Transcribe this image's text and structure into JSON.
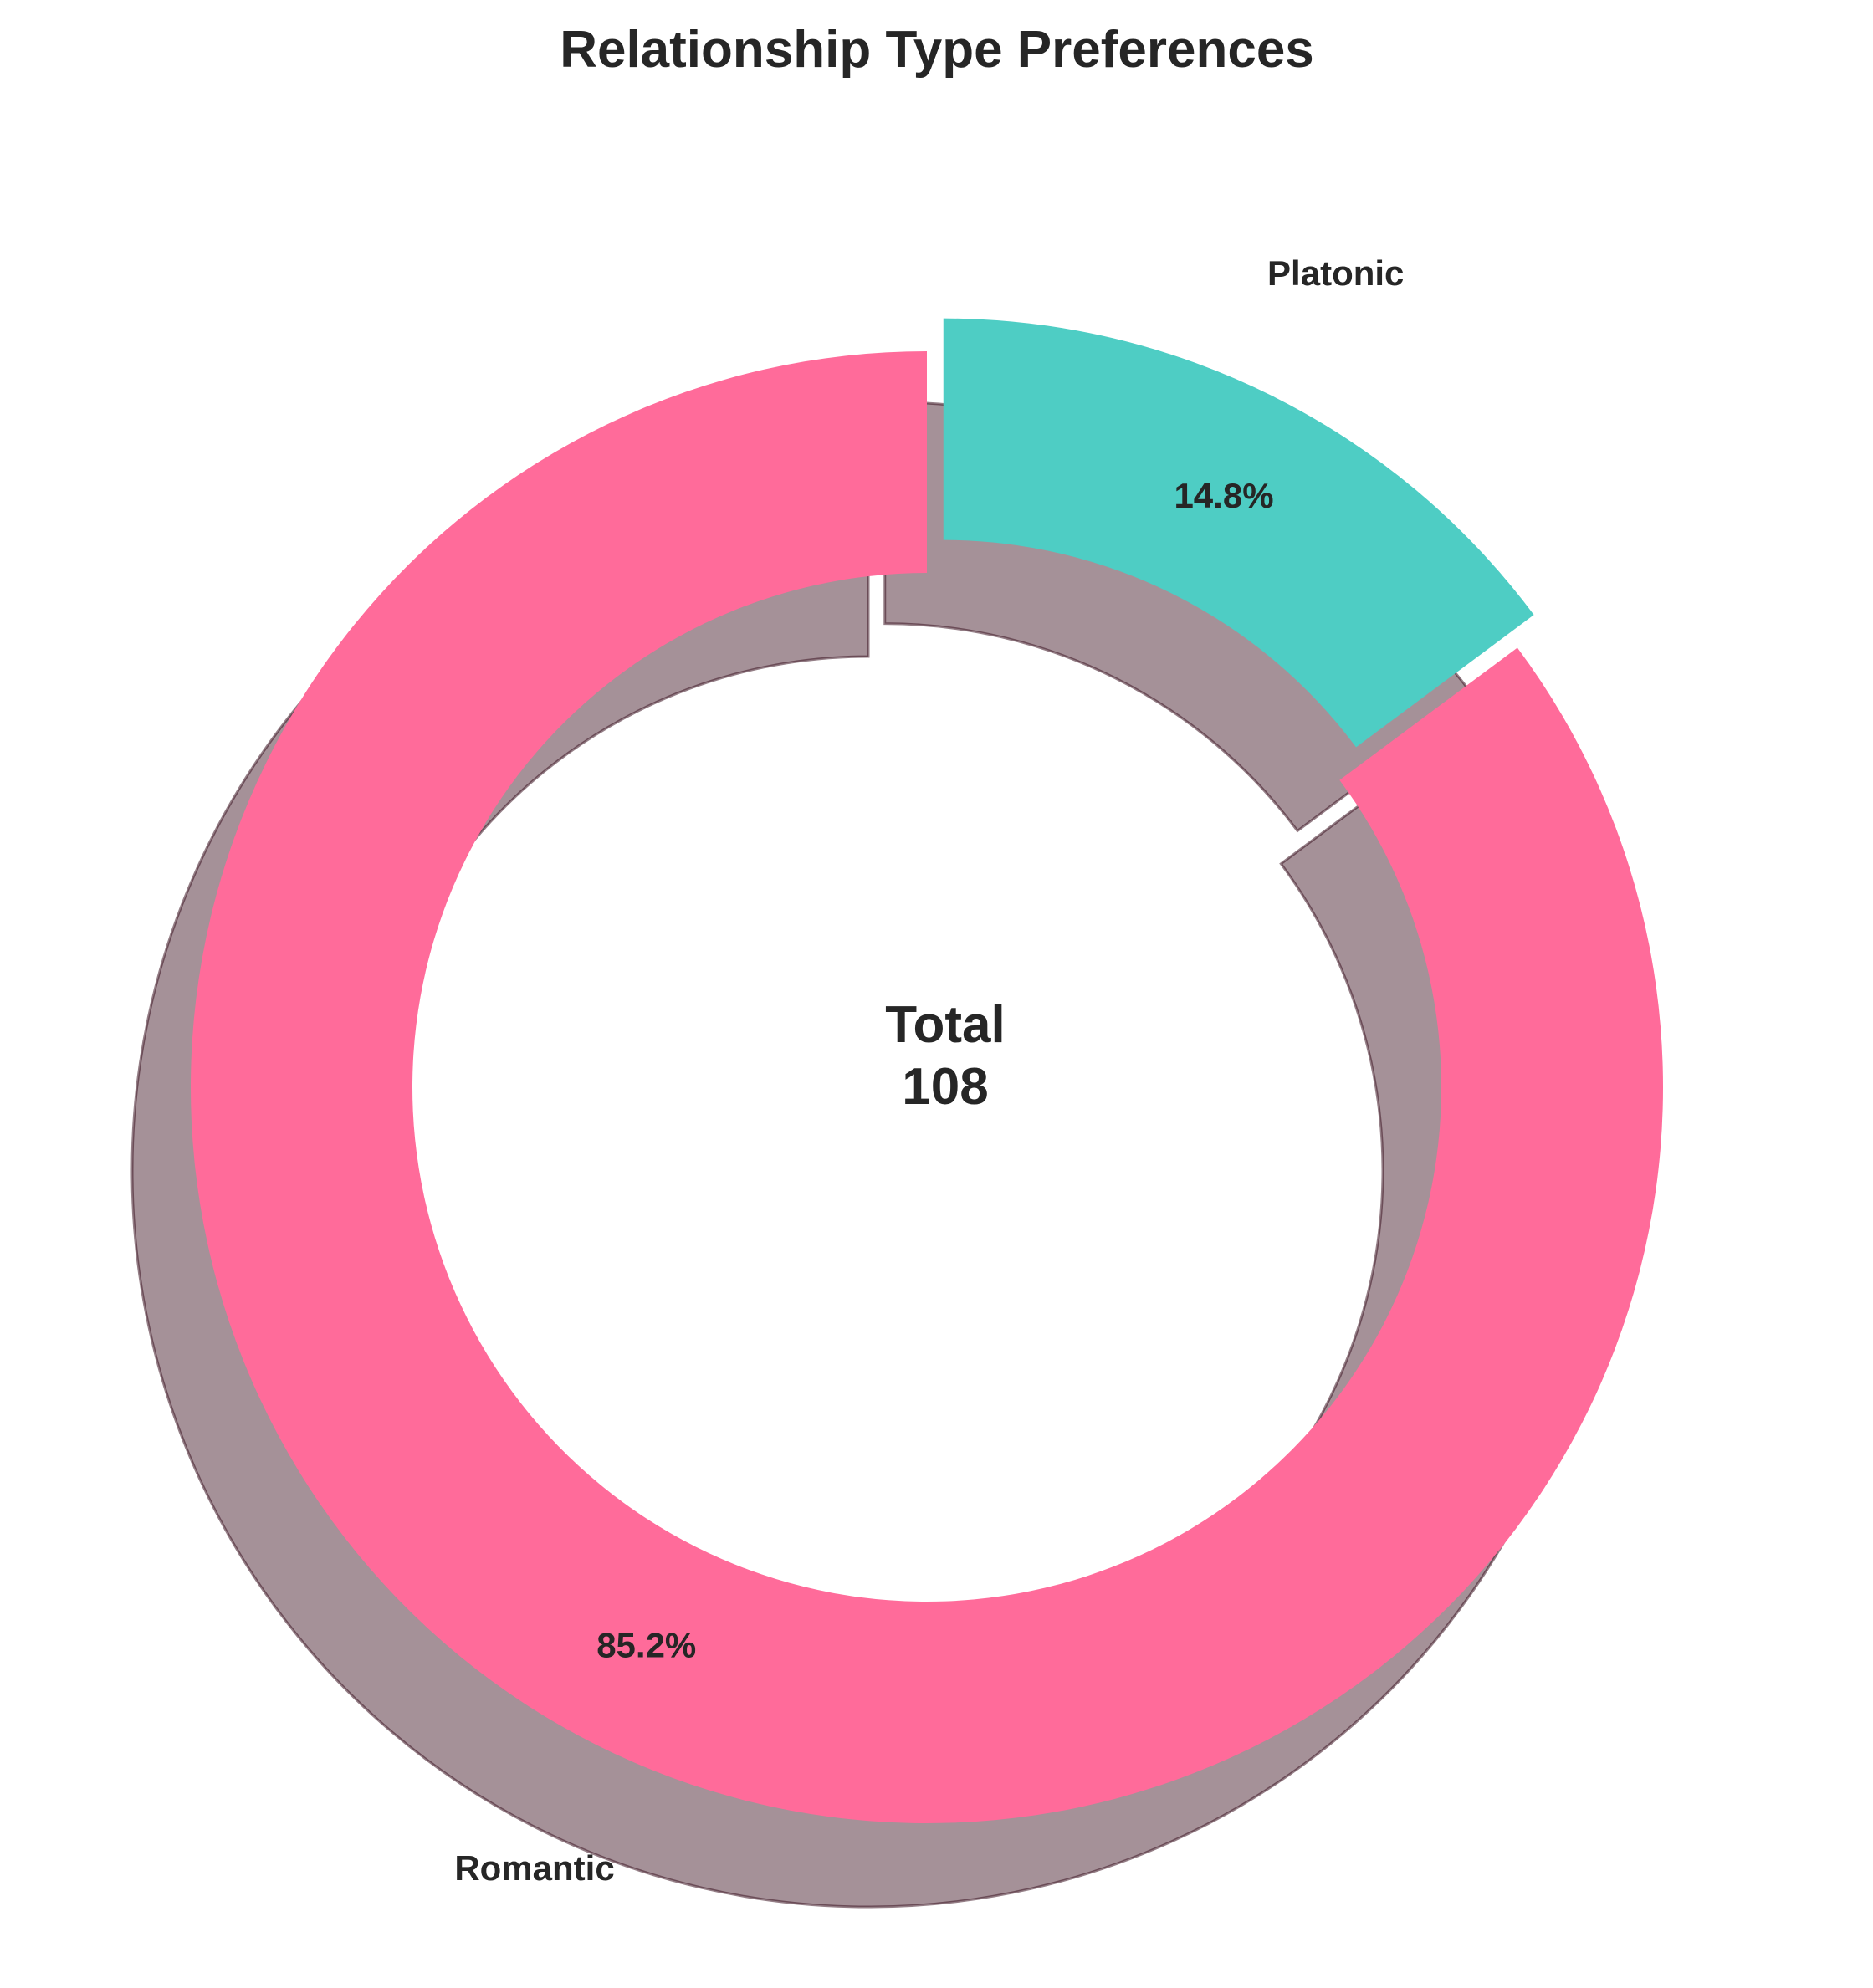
{
  "chart_data": {
    "type": "pie",
    "style": "donut",
    "title": "Relationship Type Preferences",
    "categories": [
      "Romantic",
      "Platonic"
    ],
    "values": [
      92,
      16
    ],
    "percent_labels": [
      "85.2%",
      "14.8%"
    ],
    "colors": [
      "#FF6B9A",
      "#4ECDC4"
    ],
    "exploded": [
      false,
      true
    ],
    "shadow": true,
    "start_angle_deg": 90,
    "direction": "counterclockwise",
    "center_label": {
      "title": "Total",
      "value": "108"
    },
    "legend": "none"
  }
}
